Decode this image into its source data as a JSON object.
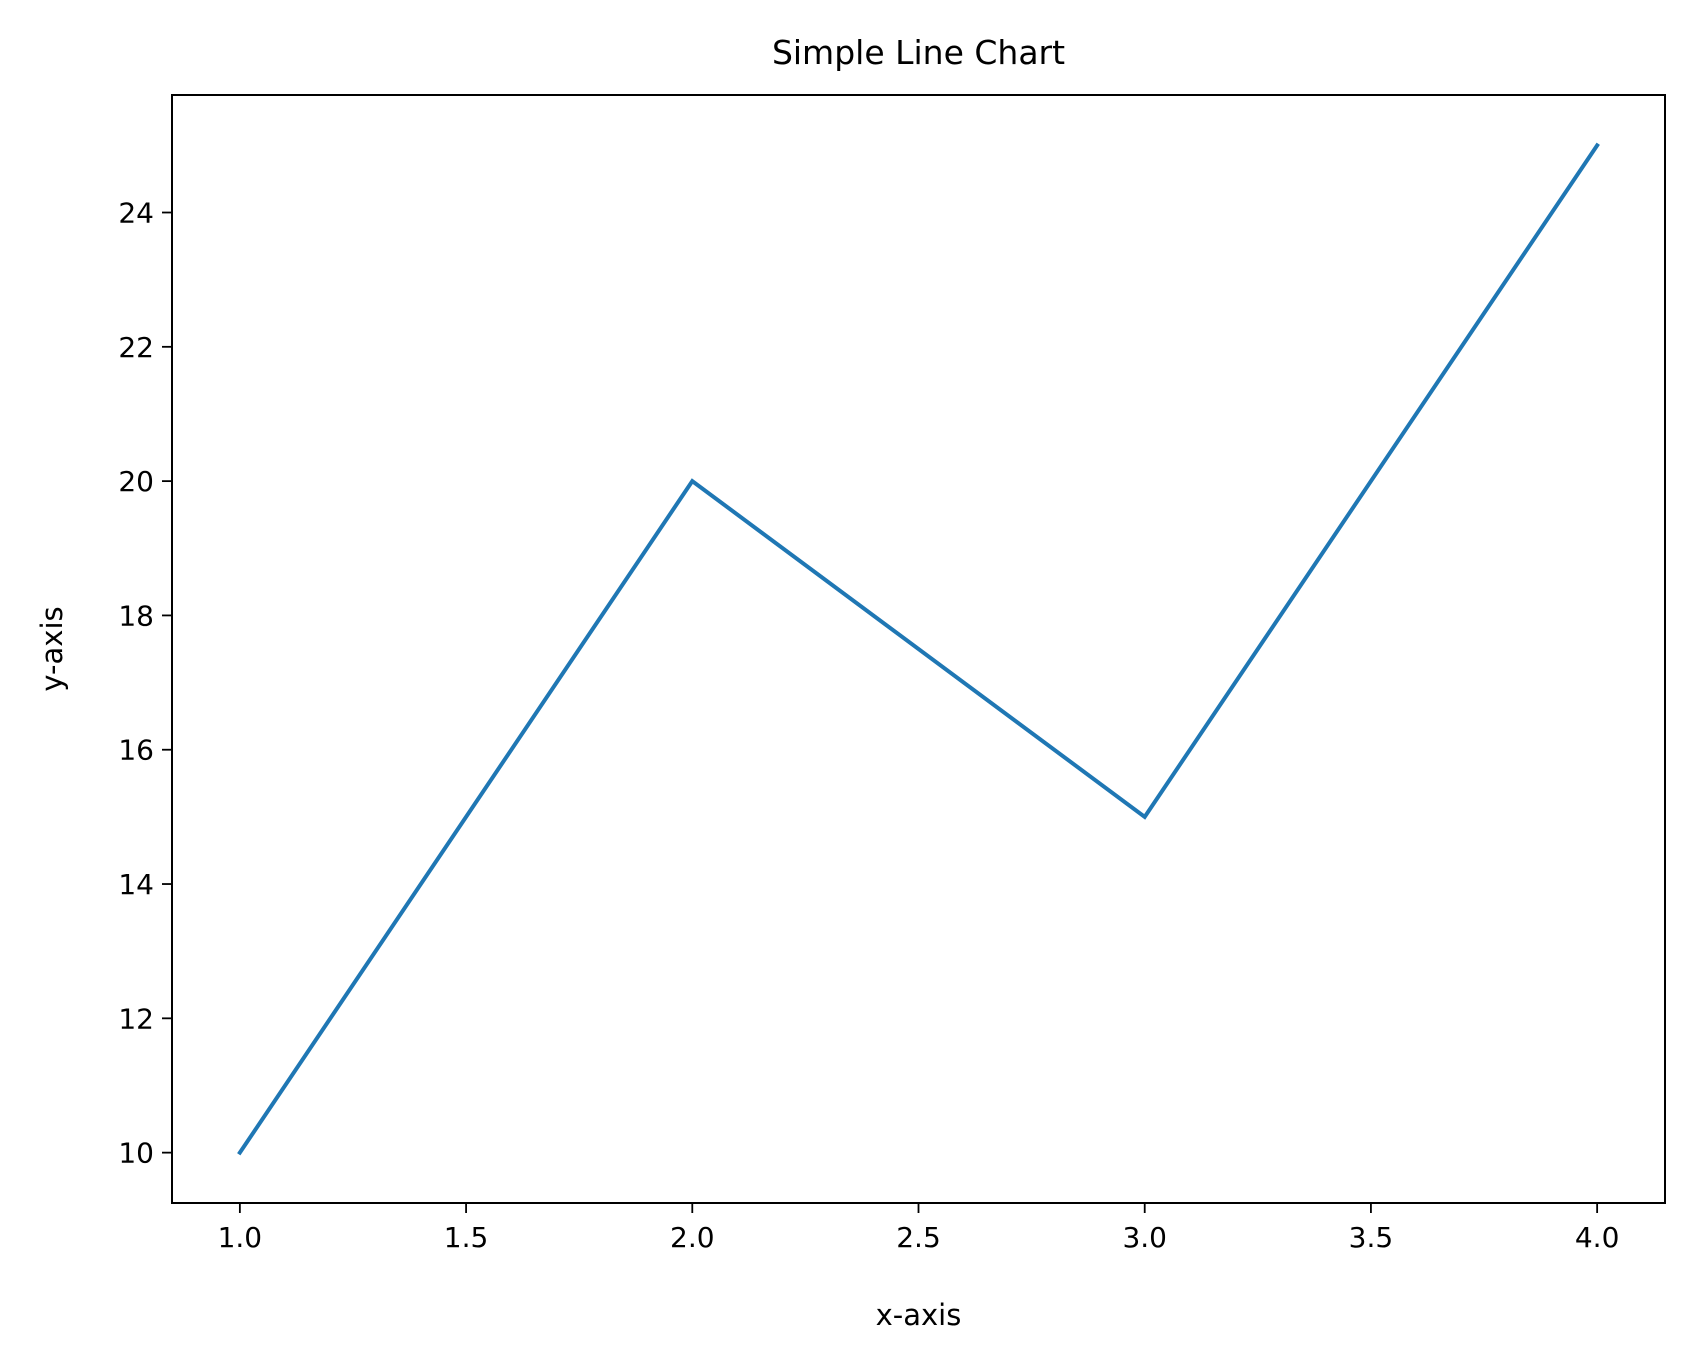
{
  "chart_data": {
    "type": "line",
    "title": "Simple Line Chart",
    "xlabel": "x-axis",
    "ylabel": "y-axis",
    "x": [
      1,
      2,
      3,
      4
    ],
    "series": [
      {
        "values": [
          10,
          20,
          15,
          25
        ],
        "color": "#1f77b4"
      }
    ],
    "xlim": [
      0.85,
      4.15
    ],
    "ylim": [
      9.25,
      25.75
    ],
    "xticks": [
      1.0,
      1.5,
      2.0,
      2.5,
      3.0,
      3.5,
      4.0
    ],
    "xtick_labels": [
      "1.0",
      "1.5",
      "2.0",
      "2.5",
      "3.0",
      "3.5",
      "4.0"
    ],
    "yticks": [
      10,
      12,
      14,
      16,
      18,
      20,
      22,
      24
    ],
    "ytick_labels": [
      "10",
      "12",
      "14",
      "16",
      "18",
      "20",
      "22",
      "24"
    ],
    "grid": false,
    "legend": "none"
  }
}
